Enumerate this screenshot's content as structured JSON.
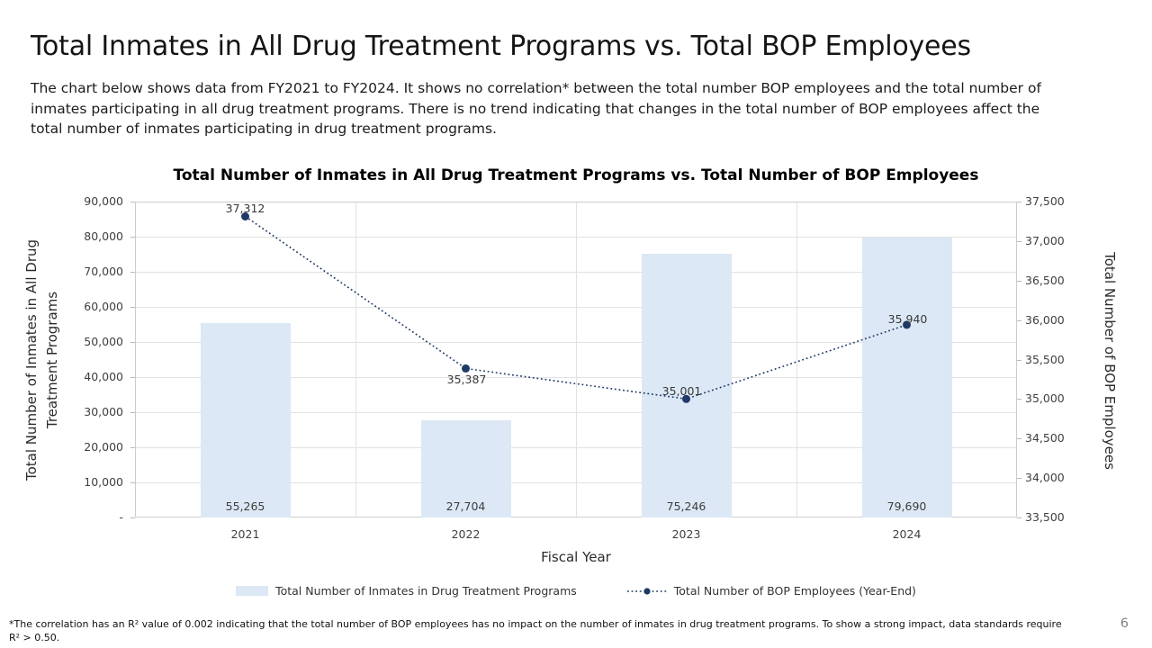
{
  "page": {
    "title": "Total Inmates in All Drug Treatment Programs vs. Total BOP Employees",
    "subtitle": "The chart below shows data from FY2021 to FY2024. It shows no correlation* between the total number BOP employees and the total number of inmates participating in all drug treatment programs. There is no trend indicating that changes in the total number of BOP employees affect the total number of inmates participating in drug treatment programs.",
    "footnote": "*The correlation has an R² value of 0.002 indicating that the total number of BOP employees has no impact on the number of inmates in drug treatment programs. To show a strong impact, data standards require R² > 0.50.",
    "page_number": "6"
  },
  "chart_data": {
    "type": "bar+line combo",
    "title": "Total Number of Inmates in All Drug Treatment Programs vs. Total Number of BOP Employees",
    "xlabel": "Fiscal Year",
    "categories": [
      "2021",
      "2022",
      "2023",
      "2024"
    ],
    "series": [
      {
        "name": "Total Number of Inmates in Drug Treatment Programs",
        "type": "bar",
        "axis": "left",
        "values": [
          55265,
          27704,
          75246,
          79690
        ],
        "labels": [
          "55,265",
          "27,704",
          "75,246",
          "79,690"
        ],
        "color": "#dce8f5"
      },
      {
        "name": "Total Number of BOP Employees (Year-End)",
        "type": "line",
        "axis": "right",
        "line_style": "dotted",
        "values": [
          37312,
          35387,
          35001,
          35940
        ],
        "labels": [
          "37,312",
          "35,387",
          "35,001",
          "35,940"
        ],
        "color": "#1f3864"
      }
    ],
    "left_axis": {
      "label": "Total Number of Inmates in All Drug Treatment Programs",
      "min": 0,
      "max": 90000,
      "step": 10000,
      "ticks": [
        "90,000",
        "80,000",
        "70,000",
        "60,000",
        "50,000",
        "40,000",
        "30,000",
        "20,000",
        "10,000",
        "-"
      ]
    },
    "right_axis": {
      "label": "Total Number of BOP Employees",
      "min": 33500,
      "max": 37500,
      "step": 500,
      "ticks": [
        "37,500",
        "37,000",
        "36,500",
        "36,000",
        "35,500",
        "35,000",
        "34,500",
        "34,000",
        "33,500"
      ]
    },
    "legend": [
      "Total Number of Inmates in Drug Treatment Programs",
      "Total Number of BOP Employees (Year-End)"
    ],
    "legend_position": "bottom",
    "grid": true,
    "gridline_color": "#e2e2e2"
  }
}
